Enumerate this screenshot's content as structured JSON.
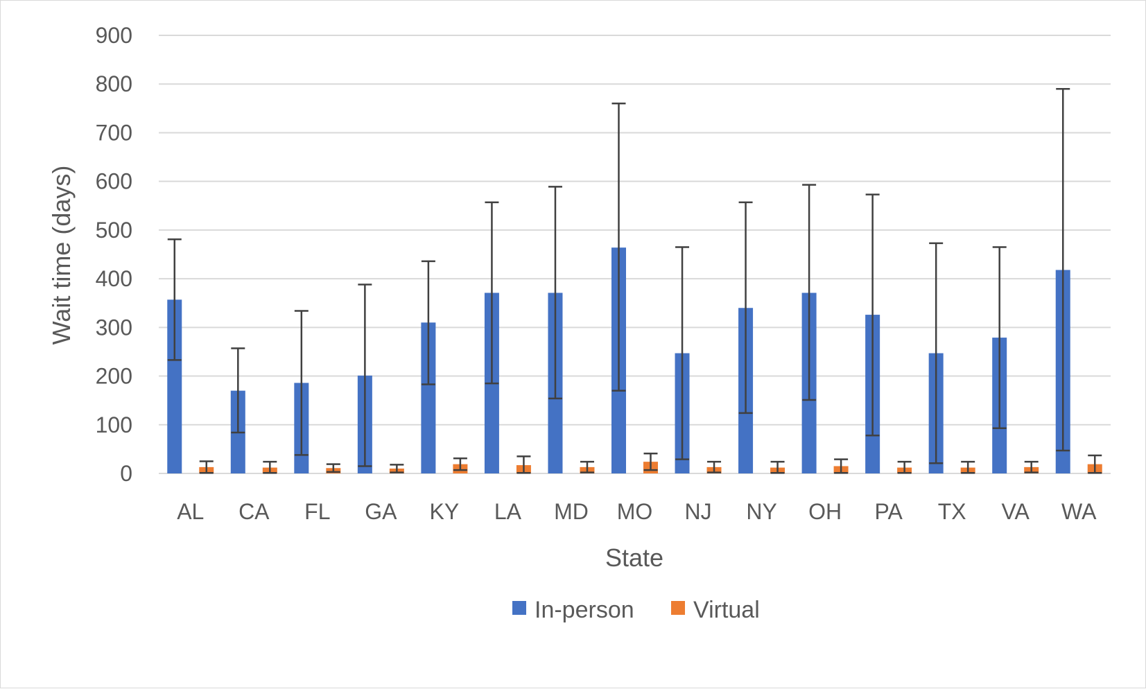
{
  "chart_data": {
    "type": "bar",
    "title": "",
    "xlabel": "State",
    "ylabel": "Wait time (days)",
    "ylim": [
      0,
      900
    ],
    "yticks": [
      0,
      100,
      200,
      300,
      400,
      500,
      600,
      700,
      800,
      900
    ],
    "grid": true,
    "legend_position": "bottom",
    "categories": [
      "AL",
      "CA",
      "FL",
      "GA",
      "KY",
      "LA",
      "MD",
      "MO",
      "NJ",
      "NY",
      "OH",
      "PA",
      "TX",
      "VA",
      "WA"
    ],
    "series": [
      {
        "name": "In-person",
        "color": "#4472c4",
        "values": [
          357,
          170,
          186,
          201,
          310,
          371,
          371,
          464,
          247,
          340,
          371,
          326,
          247,
          279,
          418
        ],
        "error_upper": [
          481,
          257,
          334,
          388,
          436,
          557,
          589,
          760,
          465,
          557,
          593,
          573,
          473,
          465,
          790
        ],
        "error_lower": [
          233,
          84,
          38,
          15,
          183,
          185,
          154,
          170,
          29,
          124,
          151,
          78,
          21,
          93,
          47
        ]
      },
      {
        "name": "Virtual",
        "color": "#ed7d31",
        "values": [
          13,
          12,
          11,
          10,
          19,
          17,
          13,
          24,
          13,
          12,
          15,
          12,
          12,
          13,
          19
        ],
        "error_upper": [
          25,
          24,
          19,
          18,
          31,
          35,
          24,
          41,
          24,
          24,
          29,
          24,
          24,
          24,
          37
        ],
        "error_lower": [
          1,
          1,
          3,
          2,
          7,
          1,
          2,
          7,
          2,
          1,
          1,
          1,
          1,
          2,
          1
        ]
      }
    ]
  }
}
